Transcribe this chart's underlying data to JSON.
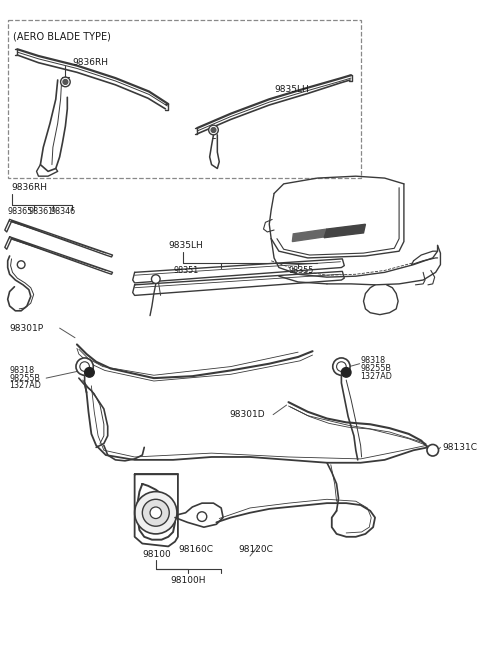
{
  "bg_color": "#ffffff",
  "line_color": "#3a3a3a",
  "text_color": "#1a1a1a",
  "figsize": [
    4.8,
    6.62
  ],
  "dpi": 100,
  "labels": {
    "aero_blade": "(AERO BLADE TYPE)",
    "9836RH_top": "9836RH",
    "9835LH_top": "9835LH",
    "9836RH": "9836RH",
    "98361": "98361",
    "98365": "98365",
    "98346": "98346",
    "9835LH": "9835LH",
    "98351": "98351",
    "98355": "98355",
    "98301P": "98301P",
    "98318_L": "98318",
    "98255B_L": "98255B",
    "1327AD_L": "1327AD",
    "98301D": "98301D",
    "98318_R": "98318",
    "98255B_R": "98255B",
    "1327AD_R": "1327AD",
    "98131C": "98131C",
    "98100": "98100",
    "98160C": "98160C",
    "98120C": "98120C",
    "98100H": "98100H"
  }
}
